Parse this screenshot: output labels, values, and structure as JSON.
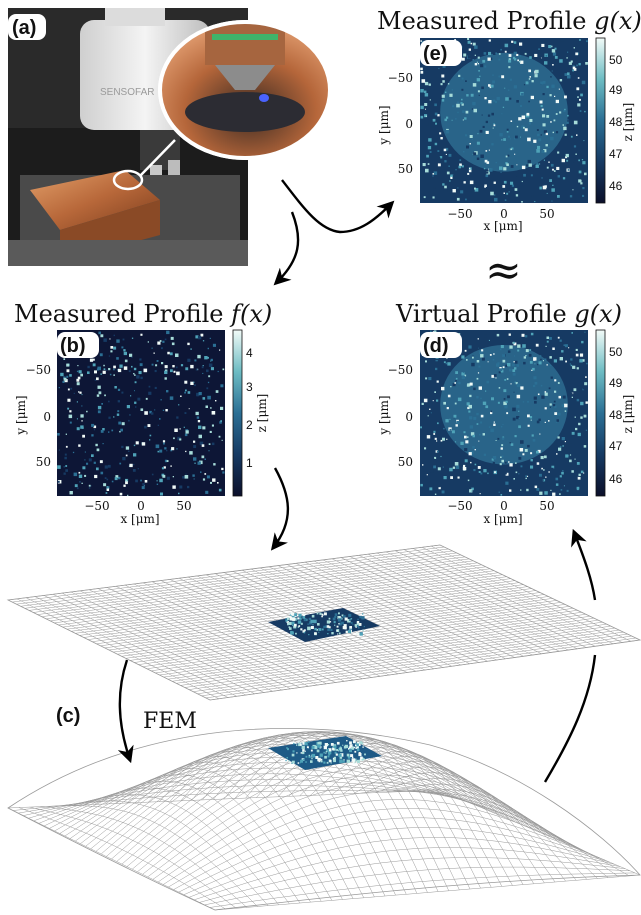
{
  "panels": {
    "a": {
      "label": "(a)",
      "microscope_text": "SENSOFAR"
    },
    "b": {
      "label": "(b)",
      "title_text": "Measured Profile ",
      "title_math": "f(x)",
      "xlabel": "x [μm]",
      "ylabel": "y [μm]",
      "zlabel": "z [μm]",
      "xticks": [
        "−50",
        "0",
        "50"
      ],
      "yticks": [
        "−50",
        "0",
        "50"
      ],
      "cbticks": [
        "4",
        "3",
        "2",
        "1"
      ]
    },
    "c": {
      "label": "(c)",
      "fem": "FEM"
    },
    "d": {
      "label": "(d)",
      "title_text": "Virtual Profile ",
      "title_math": "g(x)",
      "xlabel": "x [μm]",
      "ylabel": "y [μm]",
      "zlabel": "z [μm]",
      "xticks": [
        "−50",
        "0",
        "50"
      ],
      "yticks": [
        "−50",
        "0",
        "50"
      ],
      "cbticks": [
        "50",
        "49",
        "48",
        "47",
        "46"
      ]
    },
    "e": {
      "label": "(e)",
      "title_text": "Measured Profile ",
      "title_math": "g(x)",
      "xlabel": "x [μm]",
      "ylabel": "y [μm]",
      "zlabel": "z [μm]",
      "xticks": [
        "−50",
        "0",
        "50"
      ],
      "yticks": [
        "−50",
        "0",
        "50"
      ],
      "cbticks": [
        "50",
        "49",
        "48",
        "47",
        "46"
      ]
    }
  },
  "approx_symbol": "≈",
  "colors": {
    "colormap": [
      "#0b0f2a",
      "#163a63",
      "#2b6f94",
      "#4fa3b8",
      "#a7dcd9",
      "#f2fbf8"
    ],
    "copper": "#b8683a",
    "mesh": "#9a9a9a"
  }
}
